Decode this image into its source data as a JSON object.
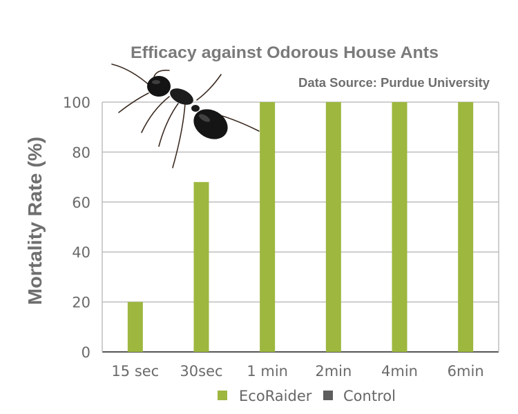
{
  "chart_data": {
    "type": "bar",
    "title": "Efficacy against Odorous House Ants",
    "subtitle": "Data Source: Purdue University",
    "xlabel": "",
    "ylabel": "Mortality Rate (%)",
    "categories": [
      "15 sec",
      "30sec",
      "1 min",
      "2min",
      "4min",
      "6min"
    ],
    "series": [
      {
        "name": "EcoRaider",
        "values": [
          20,
          68,
          100,
          100,
          100,
          100
        ]
      },
      {
        "name": "Control",
        "values": [
          0,
          0,
          0,
          0,
          0,
          0
        ]
      }
    ],
    "ylim": [
      0,
      100
    ],
    "yticks": [
      "0",
      "20",
      "40",
      "60",
      "80",
      "100"
    ],
    "grid": true,
    "legend_position": "bottom",
    "colors": {
      "EcoRaider": "#9db73f",
      "Control": "#5e5e5e",
      "grid": "#bdbdbd",
      "axis": "#555555"
    },
    "decoration": "ant-photo"
  }
}
